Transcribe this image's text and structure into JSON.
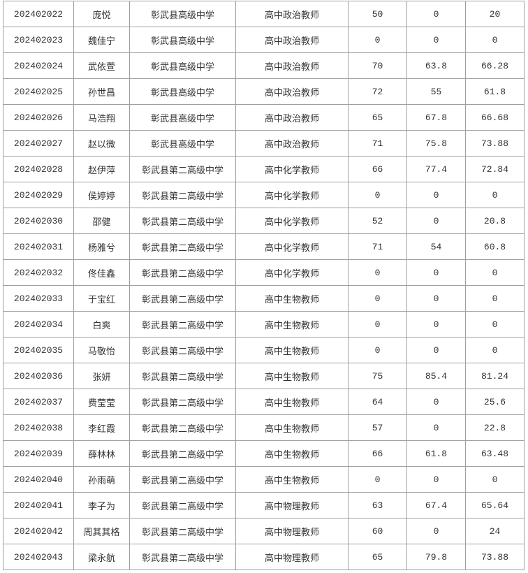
{
  "rows": [
    [
      "202402022",
      "庞悦",
      "彰武县高级中学",
      "高中政治教师",
      "50",
      "0",
      "20"
    ],
    [
      "202402023",
      "魏佳宁",
      "彰武县高级中学",
      "高中政治教师",
      "0",
      "0",
      "0"
    ],
    [
      "202402024",
      "武依萱",
      "彰武县高级中学",
      "高中政治教师",
      "70",
      "63.8",
      "66.28"
    ],
    [
      "202402025",
      "孙世昌",
      "彰武县高级中学",
      "高中政治教师",
      "72",
      "55",
      "61.8"
    ],
    [
      "202402026",
      "马浩翔",
      "彰武县高级中学",
      "高中政治教师",
      "65",
      "67.8",
      "66.68"
    ],
    [
      "202402027",
      "赵以微",
      "彰武县高级中学",
      "高中政治教师",
      "71",
      "75.8",
      "73.88"
    ],
    [
      "202402028",
      "赵伊萍",
      "彰武县第二高级中学",
      "高中化学教师",
      "66",
      "77.4",
      "72.84"
    ],
    [
      "202402029",
      "侯婷婷",
      "彰武县第二高级中学",
      "高中化学教师",
      "0",
      "0",
      "0"
    ],
    [
      "202402030",
      "邵健",
      "彰武县第二高级中学",
      "高中化学教师",
      "52",
      "0",
      "20.8"
    ],
    [
      "202402031",
      "杨雅兮",
      "彰武县第二高级中学",
      "高中化学教师",
      "71",
      "54",
      "60.8"
    ],
    [
      "202402032",
      "佟佳鑫",
      "彰武县第二高级中学",
      "高中化学教师",
      "0",
      "0",
      "0"
    ],
    [
      "202402033",
      "于宝红",
      "彰武县第二高级中学",
      "高中生物教师",
      "0",
      "0",
      "0"
    ],
    [
      "202402034",
      "白爽",
      "彰武县第二高级中学",
      "高中生物教师",
      "0",
      "0",
      "0"
    ],
    [
      "202402035",
      "马敬怡",
      "彰武县第二高级中学",
      "高中生物教师",
      "0",
      "0",
      "0"
    ],
    [
      "202402036",
      "张妍",
      "彰武县第二高级中学",
      "高中生物教师",
      "75",
      "85.4",
      "81.24"
    ],
    [
      "202402037",
      "费莹莹",
      "彰武县第二高级中学",
      "高中生物教师",
      "64",
      "0",
      "25.6"
    ],
    [
      "202402038",
      "李红霞",
      "彰武县第二高级中学",
      "高中生物教师",
      "57",
      "0",
      "22.8"
    ],
    [
      "202402039",
      "薛林林",
      "彰武县第二高级中学",
      "高中生物教师",
      "66",
      "61.8",
      "63.48"
    ],
    [
      "202402040",
      "孙雨萌",
      "彰武县第二高级中学",
      "高中生物教师",
      "0",
      "0",
      "0"
    ],
    [
      "202402041",
      "李子为",
      "彰武县第二高级中学",
      "高中物理教师",
      "63",
      "67.4",
      "65.64"
    ],
    [
      "202402042",
      "周其其格",
      "彰武县第二高级中学",
      "高中物理教师",
      "60",
      "0",
      "24"
    ],
    [
      "202402043",
      "梁永航",
      "彰武县第二高级中学",
      "高中物理教师",
      "65",
      "79.8",
      "73.88"
    ]
  ]
}
